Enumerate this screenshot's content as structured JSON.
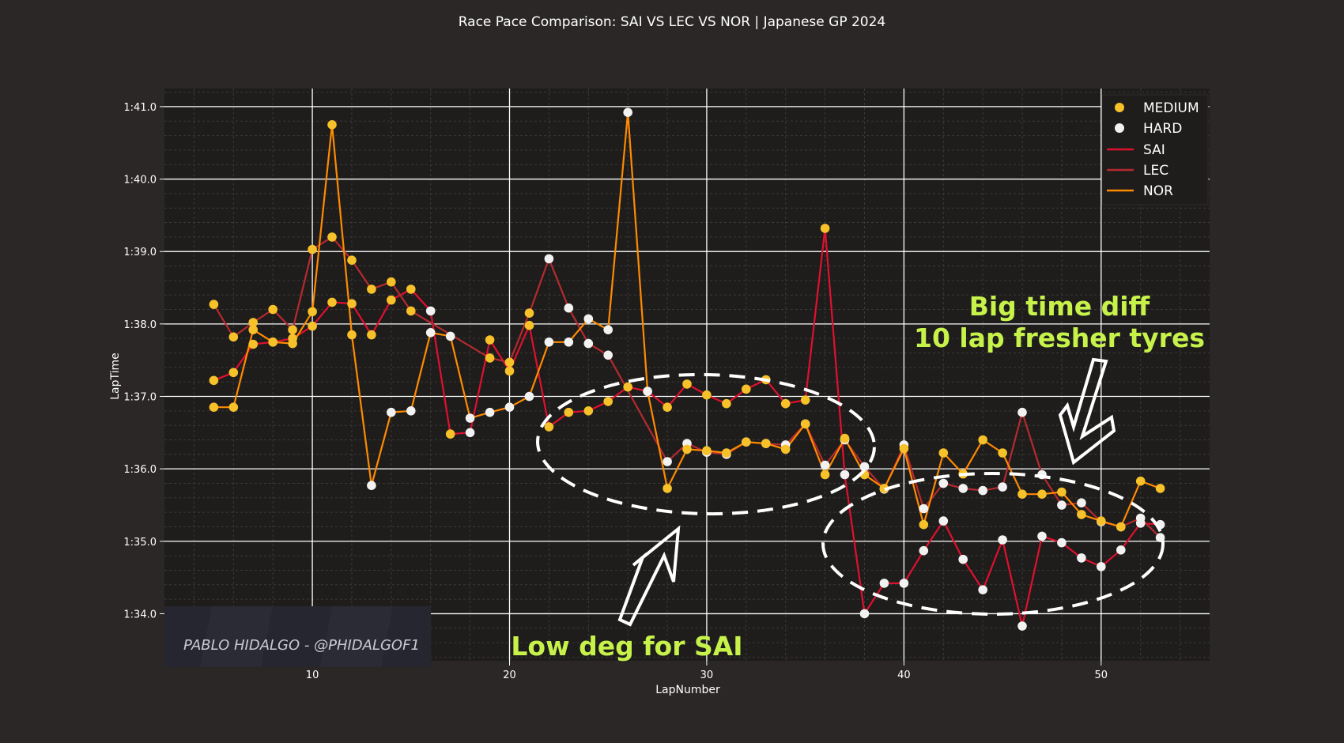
{
  "chart_data": {
    "type": "line",
    "title": "Race Pace Comparison: SAI VS LEC VS NOR | Japanese GP 2024",
    "xlabel": "LapNumber",
    "ylabel": "LapTime",
    "xlim": [
      2.5,
      55.5
    ],
    "ylim": [
      93.35,
      101.25
    ],
    "x_ticks": [
      10,
      20,
      30,
      40,
      50
    ],
    "x_tick_labels": [
      "10",
      "20",
      "30",
      "40",
      "50"
    ],
    "y_ticks": [
      94,
      95,
      96,
      97,
      98,
      99,
      100,
      101
    ],
    "y_tick_labels": [
      "1:34.0",
      "1:35.0",
      "1:36.0",
      "1:37.0",
      "1:38.0",
      "1:39.0",
      "1:40.0",
      "1:41.0"
    ],
    "grid": true,
    "legend_position": "top-right",
    "compound_colors": {
      "MEDIUM": "#f7c12a",
      "HARD": "#f2f2f2"
    },
    "series": [
      {
        "name": "SAI",
        "color": "#e0102f",
        "x": [
          5,
          6,
          7,
          8,
          9,
          10,
          11,
          12,
          13,
          14,
          15,
          16,
          17,
          18,
          19,
          20,
          21,
          22,
          23,
          24,
          25,
          26,
          27,
          28,
          29,
          30,
          31,
          32,
          33,
          34,
          35,
          36,
          37,
          38,
          39,
          40,
          41,
          42,
          43,
          44,
          45,
          46,
          47,
          48,
          49,
          50,
          51,
          52,
          53
        ],
        "y": [
          97.22,
          97.33,
          97.72,
          97.75,
          97.8,
          97.97,
          98.3,
          98.28,
          97.85,
          98.33,
          98.48,
          98.18,
          96.48,
          96.5,
          97.78,
          97.35,
          97.98,
          96.58,
          96.78,
          96.8,
          96.93,
          97.13,
          97.07,
          96.85,
          97.17,
          97.02,
          96.9,
          97.1,
          97.23,
          96.9,
          96.95,
          99.32,
          95.92,
          94.0,
          94.42,
          94.42,
          94.87,
          95.28,
          94.75,
          94.33,
          95.02,
          93.83,
          95.07,
          94.98,
          94.77,
          94.65,
          94.88,
          95.25,
          95.23
        ],
        "compound": [
          "MEDIUM",
          "MEDIUM",
          "MEDIUM",
          "MEDIUM",
          "MEDIUM",
          "MEDIUM",
          "MEDIUM",
          "MEDIUM",
          "MEDIUM",
          "MEDIUM",
          "MEDIUM",
          "HARD",
          "MEDIUM",
          "HARD",
          "MEDIUM",
          "MEDIUM",
          "MEDIUM",
          "MEDIUM",
          "MEDIUM",
          "MEDIUM",
          "MEDIUM",
          "MEDIUM",
          "MEDIUM",
          "MEDIUM",
          "MEDIUM",
          "MEDIUM",
          "MEDIUM",
          "MEDIUM",
          "MEDIUM",
          "MEDIUM",
          "MEDIUM",
          "MEDIUM",
          "HARD",
          "HARD",
          "HARD",
          "HARD",
          "HARD",
          "HARD",
          "HARD",
          "HARD",
          "HARD",
          "HARD",
          "HARD",
          "HARD",
          "HARD",
          "HARD",
          "HARD",
          "HARD",
          "HARD"
        ]
      },
      {
        "name": "LEC",
        "color": "#b52a2f",
        "x": [
          5,
          6,
          7,
          8,
          9,
          10,
          11,
          12,
          13,
          14,
          15,
          19,
          20,
          21,
          22,
          23,
          24,
          25,
          28,
          29,
          30,
          31,
          32,
          33,
          34,
          35,
          36,
          37,
          38,
          39,
          40,
          41,
          42,
          43,
          44,
          45,
          46,
          47,
          48,
          49,
          50,
          51,
          52,
          53
        ],
        "y": [
          98.27,
          97.82,
          98.02,
          98.2,
          97.92,
          99.03,
          99.2,
          98.88,
          98.48,
          98.58,
          98.18,
          97.53,
          97.47,
          98.15,
          98.9,
          98.22,
          97.73,
          97.57,
          96.1,
          96.35,
          96.23,
          96.2,
          96.37,
          96.35,
          96.33,
          96.62,
          96.05,
          96.4,
          96.03,
          95.72,
          96.33,
          95.45,
          95.8,
          95.73,
          95.7,
          95.75,
          96.78,
          95.92,
          95.5,
          95.53,
          95.27,
          95.2,
          95.32,
          95.05
        ],
        "compound": [
          "MEDIUM",
          "MEDIUM",
          "MEDIUM",
          "MEDIUM",
          "MEDIUM",
          "MEDIUM",
          "MEDIUM",
          "MEDIUM",
          "MEDIUM",
          "MEDIUM",
          "MEDIUM",
          "MEDIUM",
          "MEDIUM",
          "MEDIUM",
          "HARD",
          "HARD",
          "HARD",
          "HARD",
          "HARD",
          "HARD",
          "HARD",
          "HARD",
          "HARD",
          "HARD",
          "HARD",
          "HARD",
          "HARD",
          "HARD",
          "HARD",
          "HARD",
          "HARD",
          "HARD",
          "HARD",
          "HARD",
          "HARD",
          "HARD",
          "HARD",
          "HARD",
          "HARD",
          "HARD",
          "HARD",
          "HARD",
          "HARD",
          "HARD"
        ]
      },
      {
        "name": "NOR",
        "color": "#ff8a00",
        "x": [
          5,
          6,
          7,
          8,
          9,
          10,
          11,
          12,
          13,
          14,
          15,
          16,
          17,
          18,
          19,
          20,
          21,
          22,
          23,
          24,
          25,
          26,
          27,
          28,
          29,
          30,
          31,
          32,
          33,
          34,
          35,
          36,
          37,
          38,
          39,
          40,
          41,
          42,
          43,
          44,
          45,
          46,
          47,
          48,
          49,
          50,
          51,
          52,
          53
        ],
        "y": [
          96.85,
          96.85,
          97.92,
          97.75,
          97.73,
          98.17,
          100.75,
          97.85,
          95.77,
          96.78,
          96.8,
          97.88,
          97.83,
          96.7,
          96.78,
          96.85,
          97.0,
          97.75,
          97.75,
          98.07,
          97.92,
          100.92,
          97.07,
          95.73,
          96.27,
          96.25,
          96.22,
          96.37,
          96.35,
          96.27,
          96.62,
          95.92,
          96.42,
          95.92,
          95.73,
          96.28,
          95.23,
          96.22,
          95.93,
          96.4,
          96.22,
          95.65,
          95.65,
          95.68,
          95.37,
          95.28,
          95.2,
          95.83,
          95.73
        ],
        "compound": [
          "MEDIUM",
          "MEDIUM",
          "MEDIUM",
          "MEDIUM",
          "MEDIUM",
          "MEDIUM",
          "MEDIUM",
          "MEDIUM",
          "HARD",
          "HARD",
          "HARD",
          "HARD",
          "HARD",
          "HARD",
          "HARD",
          "HARD",
          "HARD",
          "HARD",
          "HARD",
          "HARD",
          "HARD",
          "HARD",
          "HARD",
          "MEDIUM",
          "MEDIUM",
          "MEDIUM",
          "MEDIUM",
          "MEDIUM",
          "MEDIUM",
          "MEDIUM",
          "MEDIUM",
          "MEDIUM",
          "MEDIUM",
          "MEDIUM",
          "MEDIUM",
          "MEDIUM",
          "MEDIUM",
          "MEDIUM",
          "MEDIUM",
          "MEDIUM",
          "MEDIUM",
          "MEDIUM",
          "MEDIUM",
          "MEDIUM",
          "MEDIUM",
          "MEDIUM",
          "MEDIUM",
          "MEDIUM",
          "MEDIUM"
        ]
      }
    ],
    "legend": [
      "MEDIUM",
      "HARD",
      "SAI",
      "LEC",
      "NOR"
    ],
    "annotations": {
      "big_time_line1": "Big time diff",
      "big_time_line2": "10 lap fresher tyres",
      "low_deg": "Low deg for SAI",
      "annotation_color": "#c6f24a"
    }
  },
  "watermark": "PABLO HIDALGO - @PHIDALGOF1"
}
